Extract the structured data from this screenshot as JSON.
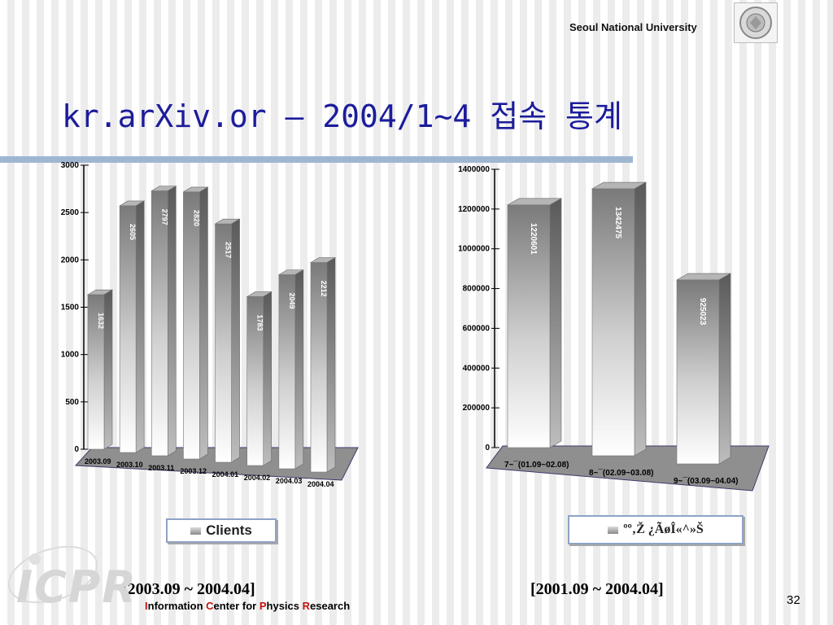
{
  "header": {
    "org": "Seoul National University"
  },
  "title": "kr.arXiv.or – 2004/1~4 접속 통계",
  "chart_data": [
    {
      "type": "bar",
      "categories": [
        "2003.09",
        "2003.10",
        "2003.11",
        "2003.12",
        "2004.01",
        "2004.02",
        "2004.03",
        "2004.04"
      ],
      "values": [
        1632,
        2605,
        2797,
        2820,
        2517,
        1783,
        2049,
        2212
      ],
      "value_labels": [
        "1632",
        "2605",
        "2797",
        "2820",
        "2517",
        "1783",
        "2049",
        "2212"
      ],
      "ylim": [
        0,
        3000
      ],
      "ytick_labels": [
        "0",
        "500",
        "1000",
        "1500",
        "2000",
        "2500",
        "3000"
      ],
      "legend": "Clients",
      "legend_placement": "bottom",
      "grid": false
    },
    {
      "type": "bar",
      "categories": [
        "7~¯(01.09~02.08)",
        "8~¯(02.09~03.08)",
        "9~¯(03.09~04.04)"
      ],
      "values": [
        1220601,
        1342475,
        925023
      ],
      "value_labels": [
        "1220601",
        "1342475",
        "925023"
      ],
      "ylim": [
        0,
        1400000
      ],
      "ytick_labels": [
        "0",
        "200000",
        "400000",
        "600000",
        "800000",
        "1000000",
        "1200000",
        "1400000"
      ],
      "legend": "ºº‚Ž ¿ÃøÎ«^»Š",
      "legend_placement": "bottom",
      "grid": false
    }
  ],
  "ranges": {
    "left": "[2003.09 ~ 2004.04]",
    "right": "[2001.09 ~ 2004.04]"
  },
  "footer": {
    "org_prefix_I": "I",
    "org_word1": "nformation ",
    "org_C": "C",
    "org_word2": "enter for ",
    "org_P": "P",
    "org_word3": "hysics ",
    "org_R": "R",
    "org_word4": "esearch",
    "page_number": "32",
    "logo": "ICPR"
  },
  "colors": {
    "title": "#1c1c9c",
    "rule": "#9fb6d2",
    "legend_border": "#8ea3c4",
    "accent_red": "#c41212"
  }
}
